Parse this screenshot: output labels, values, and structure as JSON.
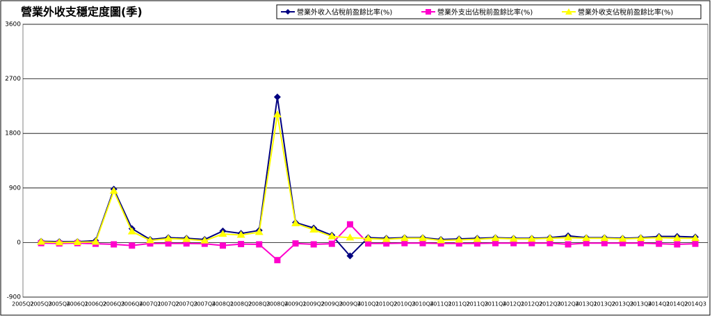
{
  "chart_data": {
    "type": "line",
    "title": "營業外收支穩定度圖(季)",
    "categories": [
      "2005Q2",
      "2005Q3",
      "2005Q4",
      "2006Q1",
      "2006Q2",
      "2006Q3",
      "2006Q4",
      "2007Q1",
      "2007Q2",
      "2007Q3",
      "2007Q4",
      "2008Q1",
      "2008Q2",
      "2008Q3",
      "2008Q4",
      "2009Q1",
      "2009Q2",
      "2009Q3",
      "2009Q4",
      "2010Q1",
      "2010Q2",
      "2010Q3",
      "2010Q4",
      "2011Q1",
      "2011Q2",
      "2011Q3",
      "2011Q4",
      "2012Q1",
      "2012Q2",
      "2012Q3",
      "2012Q4",
      "2013Q1",
      "2013Q2",
      "2013Q3",
      "2013Q4",
      "2014Q1",
      "2014Q2",
      "2014Q3"
    ],
    "series": [
      {
        "name": "營業外收入佔稅前盈餘比率(%)",
        "color": "#000080",
        "marker": "diamond",
        "values": [
          null,
          20,
          15,
          15,
          30,
          880,
          230,
          50,
          80,
          70,
          50,
          190,
          150,
          200,
          2400,
          330,
          240,
          120,
          -220,
          80,
          70,
          80,
          80,
          50,
          60,
          70,
          80,
          70,
          70,
          80,
          110,
          80,
          80,
          70,
          80,
          100,
          100,
          90
        ]
      },
      {
        "name": "營業外支出佔稅前盈餘比率(%)",
        "color": "#ff00cc",
        "marker": "square",
        "values": [
          null,
          -10,
          -15,
          -10,
          -20,
          -30,
          -50,
          -15,
          -15,
          -15,
          -20,
          -50,
          -25,
          -30,
          -290,
          -15,
          -30,
          -20,
          300,
          -15,
          -15,
          -10,
          -10,
          -15,
          -15,
          -15,
          -10,
          -10,
          -10,
          -10,
          -30,
          -10,
          -10,
          -10,
          -10,
          -20,
          -30,
          -20
        ]
      },
      {
        "name": "營業外收支佔稅前盈餘比率(%)",
        "color": "#ffff00",
        "marker": "triangle",
        "values": [
          null,
          10,
          0,
          5,
          10,
          850,
          180,
          35,
          65,
          55,
          30,
          140,
          125,
          170,
          2110,
          315,
          210,
          100,
          80,
          65,
          55,
          70,
          70,
          35,
          45,
          55,
          70,
          60,
          60,
          70,
          80,
          70,
          70,
          60,
          70,
          80,
          70,
          70
        ]
      }
    ],
    "ylim": [
      -900,
      3600
    ],
    "yticks": [
      -900,
      0,
      900,
      1800,
      2700,
      3600
    ],
    "grid": true,
    "legend": "top-right"
  }
}
